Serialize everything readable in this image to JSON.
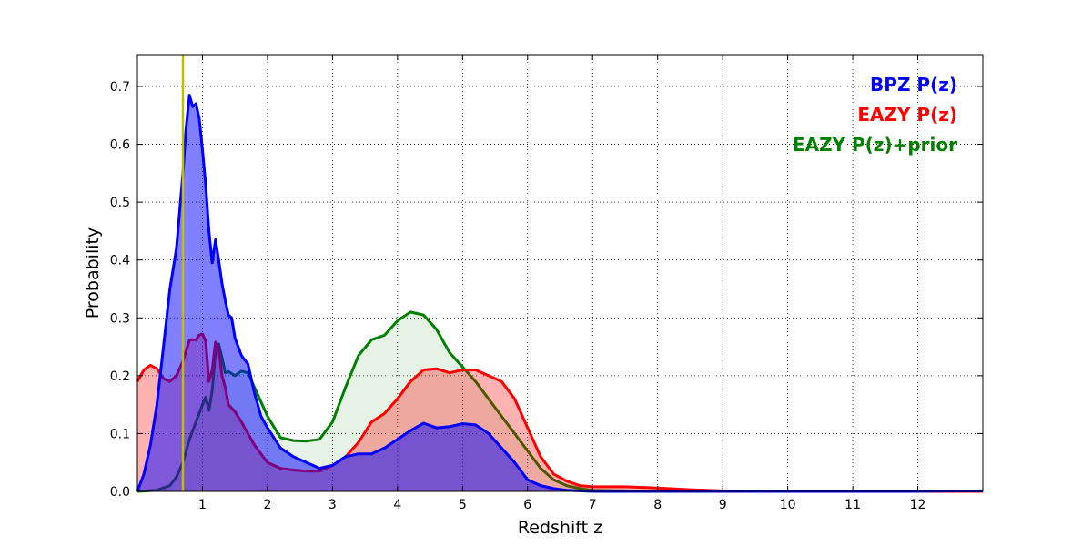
{
  "chart_data": {
    "type": "area",
    "title": "",
    "xlabel": "Redshift z",
    "ylabel": "Probability",
    "xlim": [
      0,
      13
    ],
    "ylim": [
      0,
      0.755
    ],
    "x_ticks": [
      1,
      2,
      3,
      4,
      5,
      6,
      7,
      8,
      9,
      10,
      11,
      12
    ],
    "y_ticks": [
      0.0,
      0.1,
      0.2,
      0.3,
      0.4,
      0.5,
      0.6,
      0.7
    ],
    "grid": true,
    "legend_position": "top-right",
    "vertical_line": {
      "x": 0.7,
      "color": "#bfbf00"
    },
    "series": [
      {
        "name": "EAZY P(z)+prior",
        "color": "#008000",
        "fill_opacity": 0.1,
        "x": [
          0,
          0.3,
          0.5,
          0.6,
          0.7,
          0.8,
          0.9,
          1.0,
          1.05,
          1.1,
          1.15,
          1.2,
          1.25,
          1.3,
          1.35,
          1.4,
          1.5,
          1.6,
          1.7,
          1.8,
          2.0,
          2.2,
          2.4,
          2.6,
          2.8,
          3.0,
          3.2,
          3.4,
          3.6,
          3.8,
          4.0,
          4.2,
          4.4,
          4.6,
          4.8,
          5.0,
          5.2,
          5.4,
          5.6,
          5.8,
          6.0,
          6.2,
          6.4,
          6.6,
          6.8,
          7.0,
          7.5,
          8,
          9,
          10,
          11,
          12,
          13
        ],
        "y": [
          0,
          0.002,
          0.01,
          0.025,
          0.05,
          0.09,
          0.12,
          0.15,
          0.163,
          0.14,
          0.175,
          0.24,
          0.255,
          0.232,
          0.205,
          0.207,
          0.2,
          0.208,
          0.205,
          0.18,
          0.13,
          0.093,
          0.088,
          0.087,
          0.09,
          0.12,
          0.18,
          0.235,
          0.262,
          0.27,
          0.295,
          0.31,
          0.305,
          0.28,
          0.24,
          0.215,
          0.19,
          0.16,
          0.13,
          0.1,
          0.07,
          0.04,
          0.02,
          0.01,
          0.005,
          0.002,
          0.001,
          0,
          0,
          0,
          0,
          0,
          0
        ]
      },
      {
        "name": "EAZY P(z)",
        "color": "#ff0000",
        "fill_opacity": 0.3,
        "x": [
          0,
          0.1,
          0.2,
          0.3,
          0.4,
          0.5,
          0.6,
          0.7,
          0.8,
          0.9,
          0.95,
          1.0,
          1.05,
          1.1,
          1.15,
          1.2,
          1.25,
          1.3,
          1.35,
          1.4,
          1.5,
          1.6,
          1.7,
          1.8,
          2.0,
          2.2,
          2.4,
          2.6,
          2.8,
          3.0,
          3.2,
          3.4,
          3.6,
          3.8,
          4.0,
          4.2,
          4.4,
          4.6,
          4.8,
          5.0,
          5.2,
          5.4,
          5.6,
          5.8,
          6.0,
          6.2,
          6.4,
          6.6,
          6.8,
          7.0,
          7.5,
          8.0,
          8.5,
          9.0,
          10,
          11,
          12,
          13
        ],
        "y": [
          0.19,
          0.21,
          0.218,
          0.212,
          0.195,
          0.19,
          0.2,
          0.225,
          0.262,
          0.262,
          0.27,
          0.272,
          0.26,
          0.19,
          0.21,
          0.258,
          0.248,
          0.2,
          0.18,
          0.15,
          0.138,
          0.12,
          0.1,
          0.08,
          0.05,
          0.04,
          0.037,
          0.035,
          0.035,
          0.045,
          0.06,
          0.085,
          0.12,
          0.135,
          0.16,
          0.19,
          0.21,
          0.212,
          0.205,
          0.21,
          0.21,
          0.2,
          0.19,
          0.16,
          0.11,
          0.06,
          0.03,
          0.018,
          0.01,
          0.008,
          0.008,
          0.006,
          0.003,
          0.001,
          0,
          0,
          0,
          0
        ]
      },
      {
        "name": "BPZ P(z)",
        "color": "#0000ff",
        "fill_opacity": 0.5,
        "x": [
          0,
          0.1,
          0.2,
          0.3,
          0.4,
          0.5,
          0.6,
          0.7,
          0.75,
          0.8,
          0.85,
          0.9,
          0.95,
          1.0,
          1.05,
          1.1,
          1.15,
          1.2,
          1.25,
          1.3,
          1.35,
          1.4,
          1.45,
          1.5,
          1.6,
          1.7,
          1.8,
          1.9,
          2.0,
          2.2,
          2.4,
          2.6,
          2.8,
          3.0,
          3.2,
          3.4,
          3.6,
          3.8,
          4.0,
          4.2,
          4.4,
          4.6,
          4.8,
          5.0,
          5.2,
          5.4,
          5.6,
          5.8,
          6.0,
          6.2,
          6.4,
          6.6,
          6.8,
          7.0,
          8,
          9,
          10,
          11,
          12,
          13
        ],
        "y": [
          0,
          0.03,
          0.08,
          0.15,
          0.25,
          0.35,
          0.42,
          0.55,
          0.63,
          0.685,
          0.665,
          0.67,
          0.645,
          0.59,
          0.53,
          0.45,
          0.395,
          0.435,
          0.4,
          0.36,
          0.33,
          0.305,
          0.3,
          0.265,
          0.235,
          0.22,
          0.17,
          0.13,
          0.11,
          0.075,
          0.06,
          0.05,
          0.04,
          0.045,
          0.06,
          0.065,
          0.065,
          0.075,
          0.09,
          0.105,
          0.118,
          0.11,
          0.112,
          0.117,
          0.115,
          0.1,
          0.075,
          0.05,
          0.02,
          0.01,
          0.005,
          0.002,
          0.001,
          0,
          0,
          0,
          0,
          0,
          0,
          0.001
        ]
      }
    ],
    "legend": [
      {
        "label": "BPZ P(z)",
        "color": "#0000ff"
      },
      {
        "label": "EAZY P(z)",
        "color": "#ff0000"
      },
      {
        "label": "EAZY P(z)+prior",
        "color": "#008000"
      }
    ]
  }
}
